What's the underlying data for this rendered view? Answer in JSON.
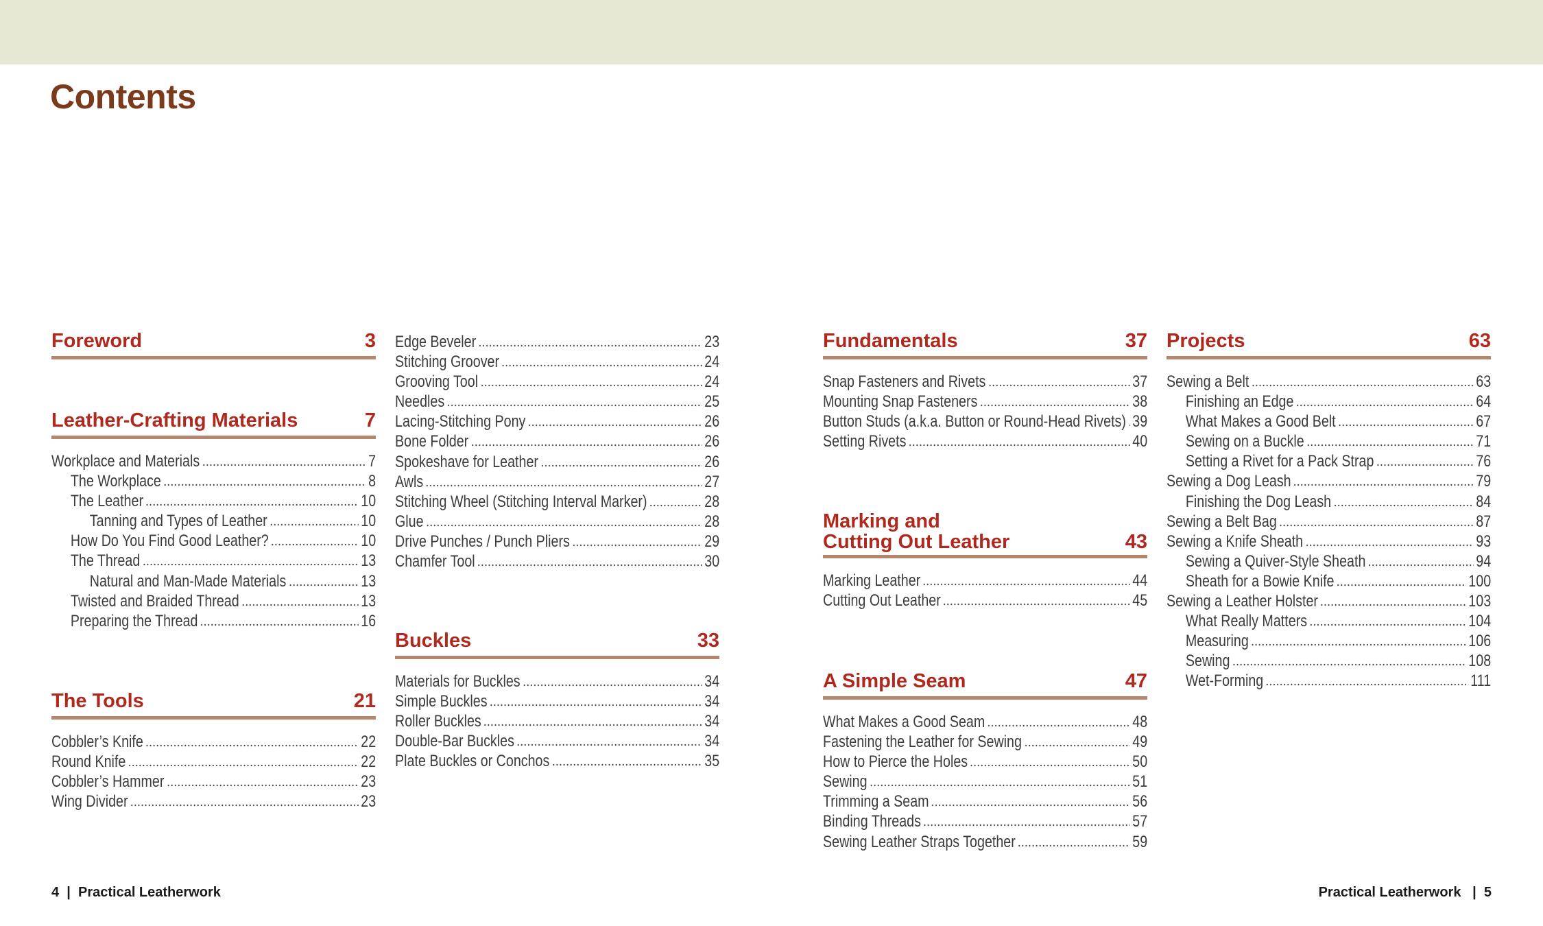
{
  "colors": {
    "band": "#e8e6d5",
    "title": "#7a3a1c",
    "heading": "#b0291f",
    "rule": "#b5856e"
  },
  "title": "Contents",
  "sections": [
    {
      "id": "foreword",
      "title": "Foreword",
      "page": "3",
      "entries": []
    },
    {
      "id": "materials",
      "title": "Leather-Crafting Materials",
      "page": "7",
      "entries": [
        {
          "label": "Workplace and Materials",
          "page": "7",
          "level": 0
        },
        {
          "label": "The Workplace",
          "page": "8",
          "level": 1
        },
        {
          "label": "The Leather",
          "page": "10",
          "level": 1
        },
        {
          "label": "Tanning and Types of Leather",
          "page": "10",
          "level": 2
        },
        {
          "label": "How Do You Find Good Leather?",
          "page": "10",
          "level": 1
        },
        {
          "label": "The Thread",
          "page": "13",
          "level": 1
        },
        {
          "label": "Natural and Man-Made Materials",
          "page": "13",
          "level": 2
        },
        {
          "label": "Twisted and Braided Thread",
          "page": "13",
          "level": 1
        },
        {
          "label": "Preparing the Thread",
          "page": "16",
          "level": 1
        }
      ]
    },
    {
      "id": "tools",
      "title": "The Tools",
      "page": "21",
      "entries": [
        {
          "label": "Cobbler’s Knife",
          "page": "22",
          "level": 0
        },
        {
          "label": "Round Knife",
          "page": "22",
          "level": 0
        },
        {
          "label": "Cobbler’s Hammer",
          "page": "23",
          "level": 0
        },
        {
          "label": "Wing Divider",
          "page": "23",
          "level": 0
        }
      ]
    },
    {
      "id": "tools-cont",
      "title": "",
      "page": "",
      "entries": [
        {
          "label": "Edge Beveler",
          "page": "23",
          "level": 0
        },
        {
          "label": "Stitching Groover",
          "page": "24",
          "level": 0
        },
        {
          "label": "Grooving Tool",
          "page": "24",
          "level": 0
        },
        {
          "label": "Needles",
          "page": "25",
          "level": 0
        },
        {
          "label": "Lacing-Stitching Pony",
          "page": "26",
          "level": 0
        },
        {
          "label": "Bone Folder",
          "page": "26",
          "level": 0
        },
        {
          "label": "Spokeshave for Leather",
          "page": "26",
          "level": 0
        },
        {
          "label": "Awls",
          "page": "27",
          "level": 0
        },
        {
          "label": "Stitching Wheel (Stitching Interval Marker)",
          "page": "28",
          "level": 0
        },
        {
          "label": "Glue",
          "page": "28",
          "level": 0
        },
        {
          "label": "Drive Punches / Punch Pliers",
          "page": "29",
          "level": 0
        },
        {
          "label": "Chamfer Tool",
          "page": "30",
          "level": 0
        }
      ]
    },
    {
      "id": "buckles",
      "title": "Buckles",
      "page": "33",
      "entries": [
        {
          "label": "Materials for Buckles",
          "page": "34",
          "level": 0
        },
        {
          "label": "Simple Buckles",
          "page": "34",
          "level": 0
        },
        {
          "label": "Roller Buckles",
          "page": "34",
          "level": 0
        },
        {
          "label": "Double-Bar Buckles",
          "page": "34",
          "level": 0
        },
        {
          "label": "Plate Buckles or Conchos",
          "page": "35",
          "level": 0
        }
      ]
    },
    {
      "id": "fundamentals",
      "title": "Fundamentals",
      "page": "37",
      "entries": [
        {
          "label": "Snap Fasteners and Rivets",
          "page": "37",
          "level": 0
        },
        {
          "label": "Mounting Snap Fasteners",
          "page": "38",
          "level": 0
        },
        {
          "label": "Button Studs (a.k.a. Button or Round-Head Rivets)",
          "page": "39",
          "level": 0
        },
        {
          "label": "Setting Rivets",
          "page": "40",
          "level": 0
        }
      ]
    },
    {
      "id": "marking",
      "title": "Marking and\nCutting Out Leather",
      "page": "43",
      "entries": [
        {
          "label": "Marking Leather",
          "page": "44",
          "level": 0
        },
        {
          "label": "Cutting Out Leather",
          "page": "45",
          "level": 0
        }
      ]
    },
    {
      "id": "seam",
      "title": "A Simple Seam",
      "page": "47",
      "entries": [
        {
          "label": "What Makes a Good Seam",
          "page": "48",
          "level": 0
        },
        {
          "label": "Fastening the Leather for Sewing",
          "page": "49",
          "level": 0
        },
        {
          "label": "How to Pierce the Holes",
          "page": "50",
          "level": 0
        },
        {
          "label": "Sewing",
          "page": "51",
          "level": 0
        },
        {
          "label": "Trimming a Seam",
          "page": "56",
          "level": 0
        },
        {
          "label": "Binding Threads",
          "page": "57",
          "level": 0
        },
        {
          "label": "Sewing Leather Straps Together",
          "page": "59",
          "level": 0
        }
      ]
    },
    {
      "id": "projects",
      "title": "Projects",
      "page": "63",
      "entries": [
        {
          "label": "Sewing a Belt",
          "page": "63",
          "level": 0
        },
        {
          "label": "Finishing an Edge",
          "page": "64",
          "level": 1
        },
        {
          "label": "What Makes a Good Belt",
          "page": "67",
          "level": 1
        },
        {
          "label": "Sewing on a Buckle",
          "page": "71",
          "level": 1
        },
        {
          "label": "Setting a Rivet for a Pack Strap",
          "page": "76",
          "level": 1
        },
        {
          "label": "Sewing a Dog Leash",
          "page": "79",
          "level": 0
        },
        {
          "label": "Finishing the Dog Leash",
          "page": "84",
          "level": 1
        },
        {
          "label": "Sewing a Belt Bag",
          "page": "87",
          "level": 0
        },
        {
          "label": "Sewing a Knife Sheath",
          "page": "93",
          "level": 0
        },
        {
          "label": "Sewing a Quiver-Style Sheath",
          "page": "94",
          "level": 1
        },
        {
          "label": "Sheath for a Bowie Knife",
          "page": "100",
          "level": 1
        },
        {
          "label": "Sewing a Leather Holster",
          "page": "103",
          "level": 0
        },
        {
          "label": "What Really Matters",
          "page": "104",
          "level": 1
        },
        {
          "label": "Measuring",
          "page": "106",
          "level": 1
        },
        {
          "label": "Sewing",
          "page": "108",
          "level": 1
        },
        {
          "label": "Wet-Forming",
          "page": "111",
          "level": 1
        }
      ]
    }
  ],
  "footer": {
    "left_page": "4",
    "left_sep": "|",
    "left_title": "Practical Leatherwork",
    "right_title": "Practical Leatherwork",
    "right_sep": "|",
    "right_page": "5"
  }
}
